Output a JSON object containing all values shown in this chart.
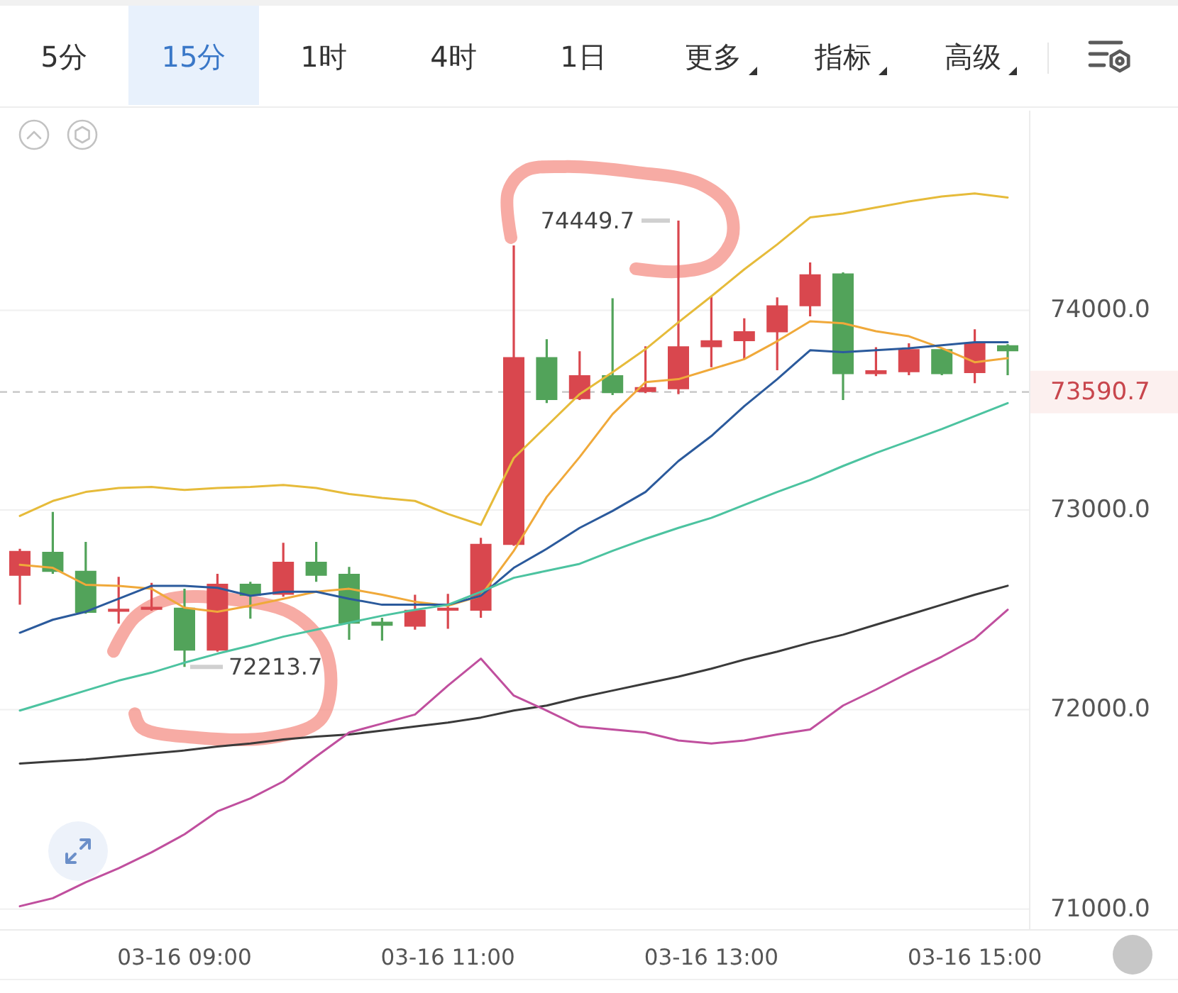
{
  "chart_data": {
    "type": "candlestick",
    "categories": [
      null,
      null,
      null,
      null,
      null,
      "03-16 09:00",
      null,
      null,
      null,
      null,
      null,
      null,
      null,
      "03-16 11:00",
      null,
      null,
      null,
      null,
      null,
      null,
      null,
      "03-16 13:00",
      null,
      null,
      null,
      null,
      null,
      null,
      null,
      "03-16 15:00",
      null
    ],
    "ohlc": [
      [
        72670,
        72805,
        72525,
        72795
      ],
      [
        72790,
        72990,
        72680,
        72690
      ],
      [
        72695,
        72840,
        72480,
        72485
      ],
      [
        72490,
        72665,
        72430,
        72505
      ],
      [
        72500,
        72635,
        72495,
        72515
      ],
      [
        72510,
        72605,
        72213.7,
        72295
      ],
      [
        72295,
        72680,
        72290,
        72630
      ],
      [
        72630,
        72640,
        72455,
        72570
      ],
      [
        72575,
        72835,
        72565,
        72740
      ],
      [
        72740,
        72840,
        72640,
        72670
      ],
      [
        72680,
        72715,
        72350,
        72430
      ],
      [
        72440,
        72460,
        72345,
        72420
      ],
      [
        72415,
        72575,
        72400,
        72500
      ],
      [
        72495,
        72580,
        72405,
        72510
      ],
      [
        72495,
        72860,
        72460,
        72830
      ],
      [
        72825,
        74325,
        72820,
        73765
      ],
      [
        73765,
        73855,
        73535,
        73550
      ],
      [
        73555,
        73795,
        73550,
        73675
      ],
      [
        73675,
        74060,
        73575,
        73585
      ],
      [
        73590,
        73820,
        73585,
        73615
      ],
      [
        73605,
        74449.7,
        73580,
        73820
      ],
      [
        73815,
        74070,
        73715,
        73850
      ],
      [
        73845,
        73960,
        73755,
        73895
      ],
      [
        73890,
        74065,
        73700,
        74025
      ],
      [
        74020,
        74240,
        73970,
        74180
      ],
      [
        74185,
        74190,
        73550,
        73680
      ],
      [
        73680,
        73815,
        73670,
        73700
      ],
      [
        73690,
        73835,
        73675,
        73805
      ],
      [
        73805,
        73810,
        73675,
        73680
      ],
      [
        73685,
        73905,
        73635,
        73835
      ],
      [
        73825,
        73830,
        73675,
        73795
      ]
    ],
    "colors": [
      "#d9474e",
      "#52a35a",
      "#52a35a",
      "#d9474e",
      "#d9474e",
      "#52a35a",
      "#d9474e",
      "#52a35a",
      "#d9474e",
      "#52a35a",
      "#52a35a",
      "#52a35a",
      "#d9474e",
      "#d9474e",
      "#d9474e",
      "#d9474e",
      "#52a35a",
      "#d9474e",
      "#52a35a",
      "#d9474e",
      "#d9474e",
      "#d9474e",
      "#d9474e",
      "#d9474e",
      "#d9474e",
      "#52a35a",
      "#d9474e",
      "#d9474e",
      "#52a35a",
      "#d9474e",
      "#52a35a"
    ],
    "series": [
      {
        "type": "line",
        "color": "#e6bb3a",
        "values": [
          72970,
          73045,
          73090,
          73110,
          73115,
          73100,
          73110,
          73115,
          73125,
          73110,
          73080,
          73060,
          73045,
          72980,
          72925,
          73260,
          73420,
          73580,
          73690,
          73805,
          73940,
          74070,
          74205,
          74330,
          74465,
          74485,
          74515,
          74545,
          74570,
          74585,
          74565
        ]
      },
      {
        "type": "line",
        "color": "#f0a93a",
        "values": [
          72725,
          72710,
          72625,
          72620,
          72605,
          72510,
          72490,
          72520,
          72555,
          72590,
          72605,
          72575,
          72540,
          72520,
          72570,
          72795,
          73065,
          73265,
          73480,
          73640,
          73655,
          73705,
          73755,
          73845,
          73945,
          73935,
          73895,
          73870,
          73810,
          73740,
          73760
        ]
      },
      {
        "type": "line",
        "color": "#2b5a9c",
        "values": [
          72385,
          72450,
          72490,
          72555,
          72620,
          72620,
          72610,
          72570,
          72590,
          72590,
          72555,
          72525,
          72525,
          72525,
          72570,
          72710,
          72805,
          72910,
          72995,
          73090,
          73245,
          73370,
          73520,
          73655,
          73800,
          73790,
          73800,
          73810,
          73825,
          73840,
          73840
        ]
      },
      {
        "type": "line",
        "color": "#4cc3a0",
        "values": [
          71995,
          72045,
          72095,
          72145,
          72185,
          72235,
          72280,
          72320,
          72365,
          72400,
          72435,
          72470,
          72500,
          72525,
          72590,
          72660,
          72695,
          72730,
          72795,
          72855,
          72910,
          72960,
          73025,
          73090,
          73150,
          73220,
          73285,
          73345,
          73405,
          73470,
          73535
        ]
      },
      {
        "type": "line",
        "color": "#3a3a3a",
        "values": [
          71730,
          71740,
          71750,
          71765,
          71780,
          71795,
          71815,
          71830,
          71850,
          71865,
          71875,
          71895,
          71915,
          71935,
          71960,
          71995,
          72020,
          72060,
          72095,
          72130,
          72165,
          72205,
          72250,
          72290,
          72335,
          72375,
          72425,
          72475,
          72525,
          72575,
          72620
        ]
      },
      {
        "type": "line",
        "color": "#c04f9e",
        "values": [
          71015,
          71055,
          71135,
          71205,
          71285,
          71375,
          71490,
          71555,
          71640,
          71765,
          71885,
          71930,
          71975,
          72120,
          72255,
          72070,
          71995,
          71915,
          71900,
          71885,
          71845,
          71830,
          71845,
          71875,
          71900,
          72020,
          72100,
          72185,
          72265,
          72355,
          72500
        ]
      }
    ],
    "ylim": [
      70900,
      75000
    ],
    "yticks": [
      {
        "value": 71000,
        "label": "71000.0"
      },
      {
        "value": 72000,
        "label": "72000.0"
      },
      {
        "value": 73000,
        "label": "73000.0"
      },
      {
        "value": 74000,
        "label": "74000.0"
      }
    ],
    "grid": "y",
    "ref_lines": [
      {
        "axis": "y",
        "value": 73590.7,
        "label": "73590.7",
        "color": "#c4c4c4",
        "line_style": "dashed"
      }
    ],
    "annotations": [
      "5分",
      "15分",
      "1时",
      "4时",
      "1日",
      "更多",
      "指标",
      "高级",
      "74449.7",
      {
        "text": "72213.7",
        "x": "03-16 09:00",
        "y": 72213.7
      }
    ]
  }
}
